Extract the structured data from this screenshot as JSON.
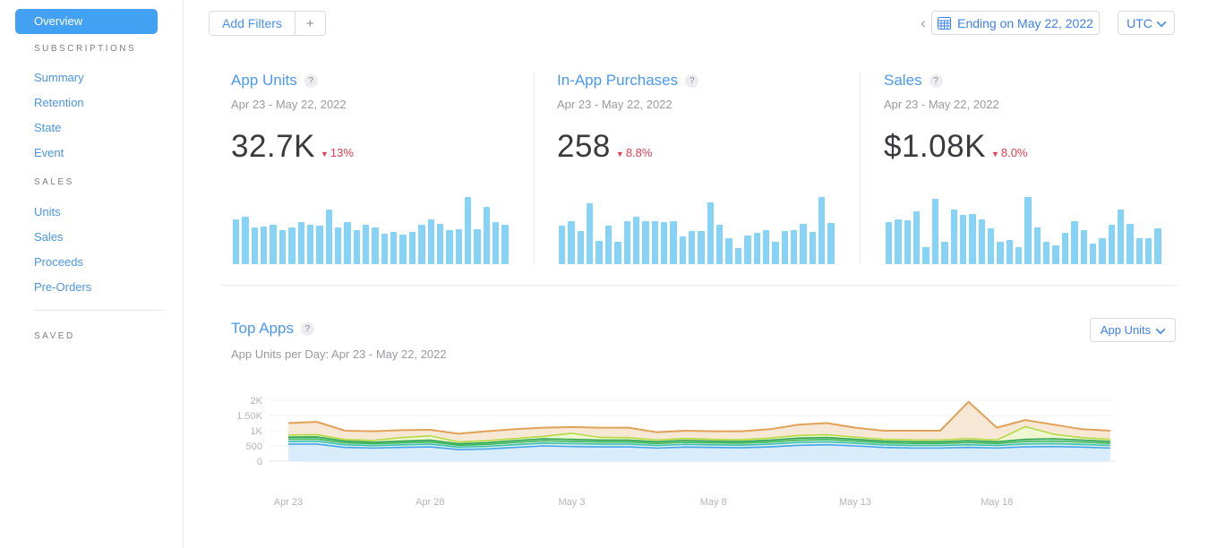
{
  "sidebar": {
    "overview_label": "Overview",
    "sections": [
      {
        "header": "SUBSCRIPTIONS",
        "links": [
          "Summary",
          "Retention",
          "State",
          "Event"
        ]
      },
      {
        "header": "SALES",
        "links": [
          "Units",
          "Sales",
          "Proceeds",
          "Pre-Orders"
        ]
      },
      {
        "header": "SAVED",
        "links": []
      }
    ]
  },
  "toolbar": {
    "add_filters_label": "Add Filters",
    "plus_label": "+",
    "prev_chevron": "‹",
    "date_range_label": "Ending on May 22, 2022",
    "timezone_label": "UTC"
  },
  "metric_cards": [
    {
      "title": "App Units",
      "help": "?",
      "date_range": "Apr 23 - May 22, 2022",
      "value": "32.7K",
      "change": "13%",
      "direction": "down",
      "down_glyph": "▼"
    },
    {
      "title": "In-App Purchases",
      "help": "?",
      "date_range": "Apr 23 - May 22, 2022",
      "value": "258",
      "change": "8.8%",
      "direction": "down",
      "down_glyph": "▼"
    },
    {
      "title": "Sales",
      "help": "?",
      "date_range": "Apr 23 - May 22, 2022",
      "value": "$1.08K",
      "change": "8.0%",
      "direction": "down",
      "down_glyph": "▼"
    }
  ],
  "top_apps": {
    "title": "Top Apps",
    "help": "?",
    "subtitle": "App Units per Day: Apr 23 - May 22, 2022",
    "metric_selector_value": "App Units"
  },
  "colors": {
    "accent_blue": "#4a98f5",
    "active_nav": "#42a1f3",
    "negative_red": "#e83a50",
    "spark_bar": "#87d3f5",
    "axis_text": "#b4b4bc",
    "gridline": "#f0f0f3"
  },
  "chart_data": [
    {
      "type": "bar",
      "title": "App Units daily sparkline",
      "x_range": "Apr 23 - May 22, 2022",
      "bar_color": "#87d3f5",
      "values_relative_pct": [
        66,
        71,
        55,
        56,
        58,
        51,
        55,
        62,
        59,
        57,
        81,
        55,
        63,
        51,
        58,
        55,
        45,
        48,
        44,
        48,
        58,
        66,
        60,
        51,
        52,
        100,
        52,
        85,
        63,
        58
      ]
    },
    {
      "type": "bar",
      "title": "In-App Purchases daily sparkline",
      "x_range": "Apr 23 - May 22, 2022",
      "bar_color": "#87d3f5",
      "values_relative_pct": [
        57,
        64,
        49,
        91,
        35,
        57,
        33,
        64,
        70,
        64,
        64,
        62,
        64,
        41,
        49,
        49,
        92,
        59,
        38,
        24,
        43,
        46,
        51,
        33,
        49,
        51,
        60,
        48,
        100,
        61
      ]
    },
    {
      "type": "bar",
      "title": "Sales daily sparkline",
      "x_range": "Apr 23 - May 22, 2022",
      "bar_color": "#87d3f5",
      "values_relative_pct": [
        62,
        67,
        65,
        78,
        25,
        97,
        33,
        81,
        73,
        75,
        66,
        53,
        33,
        36,
        25,
        100,
        54,
        33,
        28,
        47,
        64,
        50,
        31,
        39,
        58,
        81,
        60,
        39,
        39,
        53
      ]
    },
    {
      "type": "area",
      "stacked": true,
      "title": "Top Apps — App Units per Day",
      "x": [
        "Apr 23",
        "Apr 24",
        "Apr 25",
        "Apr 26",
        "Apr 27",
        "Apr 28",
        "Apr 29",
        "Apr 30",
        "May 1",
        "May 2",
        "May 3",
        "May 4",
        "May 5",
        "May 6",
        "May 7",
        "May 8",
        "May 9",
        "May 10",
        "May 11",
        "May 12",
        "May 13",
        "May 14",
        "May 15",
        "May 16",
        "May 17",
        "May 18",
        "May 19",
        "May 20",
        "May 21",
        "May 22"
      ],
      "xticks": [
        "Apr 23",
        "Apr 28",
        "May 3",
        "May 8",
        "May 13",
        "May 18"
      ],
      "xtick_indices": [
        0,
        5,
        10,
        15,
        20,
        25
      ],
      "yticks": [
        "0",
        "500",
        "1K",
        "1.50K",
        "2K"
      ],
      "ylim": [
        0,
        2000
      ],
      "grid": true,
      "legend": "none",
      "series": [
        {
          "name": "app-series-1",
          "line_color": "#47a4ea",
          "fill_color": "#d9ecfb",
          "values": [
            560,
            560,
            450,
            430,
            450,
            470,
            380,
            400,
            450,
            500,
            480,
            470,
            470,
            430,
            460,
            450,
            440,
            470,
            520,
            540,
            500,
            450,
            430,
            430,
            450,
            430,
            470,
            480,
            460,
            430
          ]
        },
        {
          "name": "app-series-2",
          "line_color": "#3fbfae",
          "fill_color": "#d9f2ee",
          "values": [
            90,
            95,
            85,
            80,
            85,
            90,
            80,
            85,
            90,
            95,
            95,
            90,
            90,
            85,
            90,
            85,
            85,
            90,
            95,
            95,
            90,
            85,
            85,
            85,
            90,
            85,
            95,
            95,
            90,
            85
          ]
        },
        {
          "name": "app-series-3",
          "line_color": "#3cb85c",
          "fill_color": "#d9f0de",
          "values": [
            75,
            75,
            65,
            60,
            65,
            70,
            60,
            65,
            70,
            75,
            75,
            70,
            70,
            65,
            70,
            65,
            65,
            70,
            75,
            75,
            70,
            65,
            65,
            65,
            70,
            65,
            80,
            85,
            75,
            70
          ]
        },
        {
          "name": "app-series-4",
          "line_color": "#2aa34f",
          "fill_color": "#d2edd9",
          "values": [
            65,
            65,
            55,
            50,
            55,
            60,
            50,
            55,
            60,
            65,
            65,
            60,
            60,
            55,
            60,
            55,
            55,
            60,
            65,
            65,
            60,
            55,
            55,
            55,
            60,
            55,
            70,
            75,
            65,
            60
          ]
        },
        {
          "name": "app-series-5",
          "line_color": "#b5d944",
          "fill_color": "#eef7cf",
          "values": [
            70,
            75,
            55,
            60,
            120,
            140,
            60,
            65,
            70,
            80,
            200,
            90,
            80,
            60,
            65,
            60,
            60,
            70,
            90,
            90,
            70,
            60,
            60,
            60,
            70,
            60,
            420,
            150,
            80,
            70
          ]
        },
        {
          "name": "app-series-6",
          "line_color": "#e0a258",
          "fill_color": "#f6e8d5",
          "values": [
            390,
            420,
            290,
            300,
            245,
            200,
            270,
            310,
            310,
            285,
            205,
            320,
            330,
            255,
            255,
            265,
            275,
            290,
            355,
            385,
            310,
            285,
            305,
            305,
            1210,
            405,
            215,
            315,
            280,
            285
          ]
        }
      ]
    }
  ]
}
